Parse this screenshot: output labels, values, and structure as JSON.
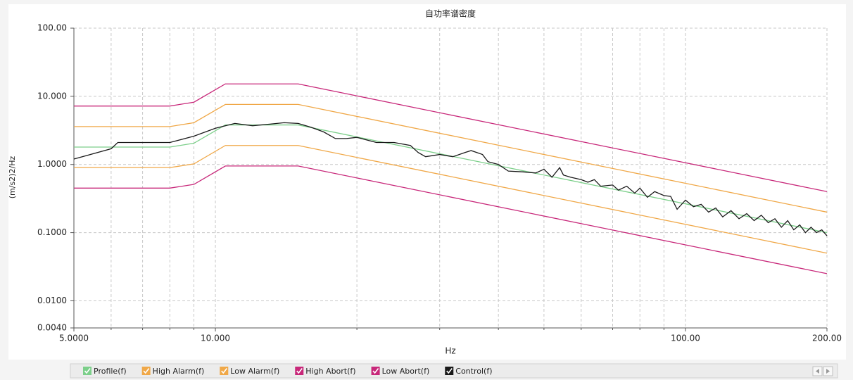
{
  "chart_data": {
    "type": "line",
    "title": "自功率谱密度",
    "x_label": "Hz",
    "y_label": "(m/s2)2/Hz",
    "xscale": "log",
    "yscale": "log",
    "xlim": [
      5,
      200
    ],
    "ylim": [
      0.004,
      100
    ],
    "xticks": [
      {
        "value": 5,
        "label": "5.0000"
      },
      {
        "value": 10,
        "label": "10.000"
      },
      {
        "value": 100,
        "label": "100.00"
      },
      {
        "value": 200,
        "label": "200.00"
      }
    ],
    "x_minor_ticks": [
      6,
      7,
      8,
      9,
      20,
      30,
      40,
      50,
      60,
      70,
      80,
      90
    ],
    "yticks": [
      {
        "value": 100,
        "label": "100.00"
      },
      {
        "value": 10,
        "label": "10.000"
      },
      {
        "value": 1,
        "label": "1.0000"
      },
      {
        "value": 0.1,
        "label": "0.1000"
      },
      {
        "value": 0.01,
        "label": "0.0100"
      },
      {
        "value": 0.004,
        "label": "0.0040"
      }
    ],
    "grid": true,
    "legend": "bottom",
    "series": [
      {
        "name": "Profile(f)",
        "color": "#7ccf8a",
        "x": [
          5,
          8,
          9,
          10.5,
          15,
          200
        ],
        "values": [
          1.8,
          1.8,
          2.05,
          3.8,
          3.8,
          0.1
        ]
      },
      {
        "name": "High Alarm(f)",
        "color": "#f0a848",
        "x": [
          5,
          8,
          9,
          10.5,
          15,
          200
        ],
        "values": [
          3.6,
          3.6,
          4.1,
          7.6,
          7.6,
          0.2
        ]
      },
      {
        "name": "Low Alarm(f)",
        "color": "#f0a848",
        "x": [
          5,
          8,
          9,
          10.5,
          15,
          200
        ],
        "values": [
          0.9,
          0.9,
          1.02,
          1.9,
          1.9,
          0.05
        ]
      },
      {
        "name": "High Abort(f)",
        "color": "#c8287a",
        "x": [
          5,
          8,
          9,
          10.5,
          15,
          200
        ],
        "values": [
          7.2,
          7.2,
          8.2,
          15.2,
          15.2,
          0.4
        ]
      },
      {
        "name": "Low Abort(f)",
        "color": "#c8287a",
        "x": [
          5,
          8,
          9,
          10.5,
          15,
          200
        ],
        "values": [
          0.45,
          0.45,
          0.51,
          0.95,
          0.95,
          0.025
        ]
      },
      {
        "name": "Control(f)",
        "color": "#1a1a1a",
        "legend_text_color": "#e00000",
        "x": [
          5,
          6,
          6.2,
          8,
          9,
          10,
          11,
          12,
          13,
          14,
          15,
          16,
          17,
          18,
          19,
          20,
          22,
          24,
          26,
          27,
          28,
          30,
          32,
          34,
          35,
          37,
          38,
          40,
          42,
          45,
          48,
          50,
          52,
          54,
          55,
          57,
          60,
          62,
          64,
          66,
          70,
          72,
          75,
          78,
          80,
          83,
          86,
          90,
          93,
          96,
          100,
          104,
          108,
          112,
          116,
          120,
          125,
          130,
          135,
          140,
          145,
          150,
          155,
          160,
          165,
          170,
          175,
          180,
          185,
          190,
          195,
          200
        ],
        "values": [
          1.2,
          1.7,
          2.1,
          2.1,
          2.6,
          3.4,
          4.0,
          3.7,
          3.9,
          4.1,
          4.0,
          3.5,
          3.0,
          2.4,
          2.4,
          2.5,
          2.1,
          2.1,
          1.9,
          1.5,
          1.3,
          1.4,
          1.3,
          1.5,
          1.6,
          1.4,
          1.1,
          1.0,
          0.8,
          0.78,
          0.75,
          0.85,
          0.65,
          0.9,
          0.7,
          0.65,
          0.6,
          0.55,
          0.6,
          0.48,
          0.5,
          0.42,
          0.48,
          0.38,
          0.45,
          0.33,
          0.4,
          0.35,
          0.34,
          0.22,
          0.3,
          0.24,
          0.26,
          0.2,
          0.23,
          0.17,
          0.21,
          0.16,
          0.19,
          0.15,
          0.18,
          0.14,
          0.16,
          0.12,
          0.15,
          0.11,
          0.13,
          0.1,
          0.12,
          0.1,
          0.11,
          0.09
        ]
      }
    ]
  }
}
